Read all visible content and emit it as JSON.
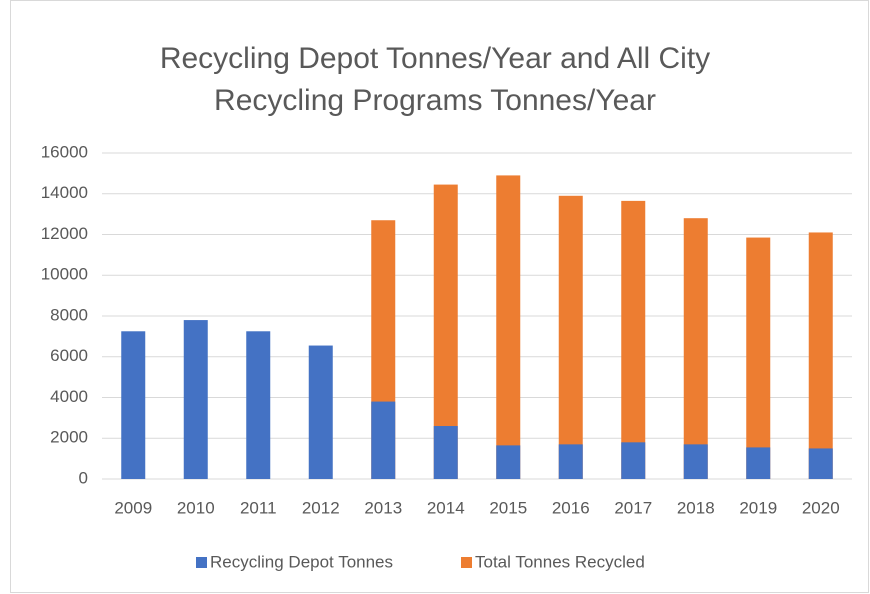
{
  "chart_data": {
    "type": "bar",
    "title": "Recycling Depot Tonnes/Year and All City Recycling Programs Tonnes/Year",
    "categories": [
      "2009",
      "2010",
      "2011",
      "2012",
      "2013",
      "2014",
      "2015",
      "2016",
      "2017",
      "2018",
      "2019",
      "2020"
    ],
    "series": [
      {
        "name": "Recycling Depot Tonnes",
        "color": "#4472c4",
        "values": [
          7250,
          7800,
          7250,
          6550,
          3800,
          2600,
          1650,
          1700,
          1800,
          1700,
          1550,
          1500
        ]
      },
      {
        "name": "Total Tonnes Recycled",
        "color": "#ed7d31",
        "values": [
          null,
          null,
          null,
          null,
          12700,
          14450,
          14900,
          13900,
          13650,
          12800,
          11850,
          12100
        ]
      }
    ],
    "ylim": [
      0,
      16000
    ],
    "yticks": [
      0,
      2000,
      4000,
      6000,
      8000,
      10000,
      12000,
      14000,
      16000
    ],
    "grid": true,
    "legend": "bottom"
  }
}
